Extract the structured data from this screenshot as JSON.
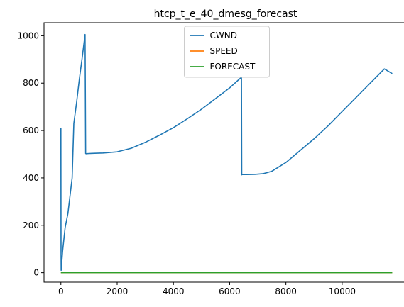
{
  "chart_data": {
    "type": "line",
    "title": "htcp_t_e_40_dmesg_forecast",
    "xlabel": "",
    "ylabel": "",
    "xlim": [
      -600,
      12300
    ],
    "ylim": [
      -40,
      1055
    ],
    "xticks": [
      0,
      2000,
      4000,
      6000,
      8000,
      10000
    ],
    "yticks": [
      0,
      200,
      400,
      600,
      800,
      1000
    ],
    "grid": false,
    "legend_position": "upper center",
    "series": [
      {
        "name": "CWND",
        "color": "#1f77b4",
        "x": [
          0,
          5,
          10,
          60,
          150,
          250,
          330,
          400,
          460,
          560,
          660,
          760,
          860,
          880,
          900,
          1000,
          1200,
          1500,
          2000,
          2500,
          3000,
          3500,
          4000,
          4500,
          5000,
          5500,
          6000,
          6420,
          6430,
          6440,
          6600,
          6900,
          7200,
          7500,
          8000,
          8500,
          9000,
          9500,
          10000,
          10500,
          11000,
          11500,
          11780
        ],
        "y": [
          610,
          100,
          10,
          90,
          190,
          250,
          330,
          400,
          630,
          720,
          820,
          910,
          1005,
          503,
          502,
          503,
          504,
          505,
          510,
          525,
          550,
          580,
          612,
          650,
          690,
          735,
          780,
          825,
          413,
          414,
          414,
          415,
          418,
          428,
          465,
          515,
          565,
          620,
          680,
          740,
          800,
          860,
          840
        ]
      },
      {
        "name": "SPEED",
        "color": "#ff7f0e",
        "x": [
          0,
          11780
        ],
        "y": [
          0,
          0
        ]
      },
      {
        "name": "FORECAST",
        "color": "#2ca02c",
        "x": [
          0,
          11780
        ],
        "y": [
          0,
          0
        ]
      }
    ]
  }
}
